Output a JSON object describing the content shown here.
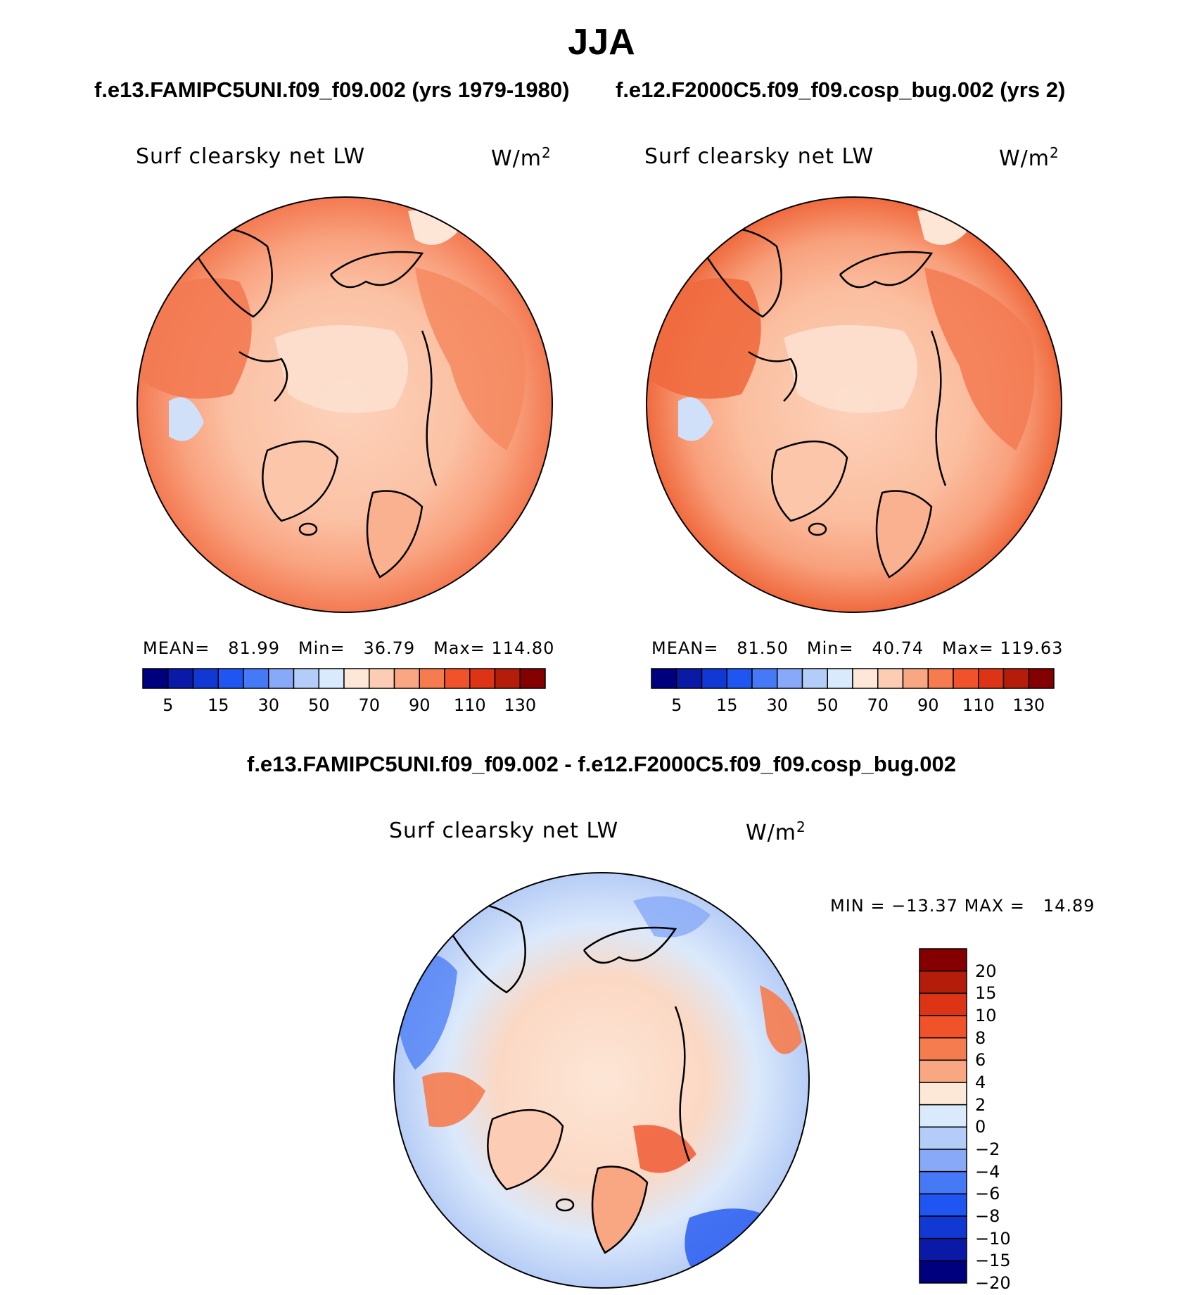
{
  "figure": {
    "season": "JJA",
    "run_a_title": "f.e13.FAMIPC5UNI.f09_f09.002 (yrs 1979-1980)",
    "run_b_title": "f.e12.F2000C5.f09_f09.cosp_bug.002 (yrs 2)",
    "diff_title": "f.e13.FAMIPC5UNI.f09_f09.002 - f.e12.F2000C5.f09_f09.cosp_bug.002"
  },
  "chart_data": [
    {
      "type": "heatmap",
      "projection": "north polar stereographic",
      "title": "Surf clearsky net LW",
      "units": "W/m",
      "units_exponent": "2",
      "stats": {
        "mean_label": "MEAN=",
        "mean": "81.99",
        "min_label": "Min=",
        "min": "36.79",
        "max_label": "Max=",
        "max": "114.80"
      },
      "colorbar": {
        "orientation": "horizontal",
        "colors": [
          "#00007f",
          "#0a1aa6",
          "#1238d4",
          "#1f55f0",
          "#4679f5",
          "#87a9f7",
          "#b4cdf8",
          "#d9eafc",
          "#fde8d8",
          "#fcccb4",
          "#f9a682",
          "#f57c4f",
          "#f0532a",
          "#dc3414",
          "#b51d0b",
          "#840000"
        ],
        "tick_labels": [
          "5",
          "15",
          "30",
          "50",
          "70",
          "90",
          "110",
          "130"
        ]
      }
    },
    {
      "type": "heatmap",
      "projection": "north polar stereographic",
      "title": "Surf clearsky net LW",
      "units": "W/m",
      "units_exponent": "2",
      "stats": {
        "mean_label": "MEAN=",
        "mean": "81.50",
        "min_label": "Min=",
        "min": "40.74",
        "max_label": "Max=",
        "max": "119.63"
      },
      "colorbar": {
        "orientation": "horizontal",
        "colors": [
          "#00007f",
          "#0a1aa6",
          "#1238d4",
          "#1f55f0",
          "#4679f5",
          "#87a9f7",
          "#b4cdf8",
          "#d9eafc",
          "#fde8d8",
          "#fcccb4",
          "#f9a682",
          "#f57c4f",
          "#f0532a",
          "#dc3414",
          "#b51d0b",
          "#840000"
        ],
        "tick_labels": [
          "5",
          "15",
          "30",
          "50",
          "70",
          "90",
          "110",
          "130"
        ]
      }
    },
    {
      "type": "heatmap",
      "projection": "north polar stereographic",
      "title": "Surf clearsky net LW",
      "units": "W/m",
      "units_exponent": "2",
      "stats": {
        "min_label": "MIN =",
        "min": "−13.37",
        "max_label": "MAX =",
        "max": "14.89"
      },
      "colorbar": {
        "orientation": "vertical",
        "colors_top_to_bottom": [
          "#840000",
          "#b51d0b",
          "#dc3414",
          "#f0532a",
          "#f57c4f",
          "#f9a682",
          "#fde8d8",
          "#d9eafc",
          "#b4cdf8",
          "#87a9f7",
          "#4679f5",
          "#1f55f0",
          "#1238d4",
          "#0a1aa6",
          "#00007f"
        ],
        "tick_labels_top_to_bottom": [
          "20",
          "15",
          "10",
          "8",
          "6",
          "4",
          "2",
          "0",
          "−2",
          "−4",
          "−6",
          "−8",
          "−10",
          "−15",
          "−20"
        ]
      }
    }
  ]
}
